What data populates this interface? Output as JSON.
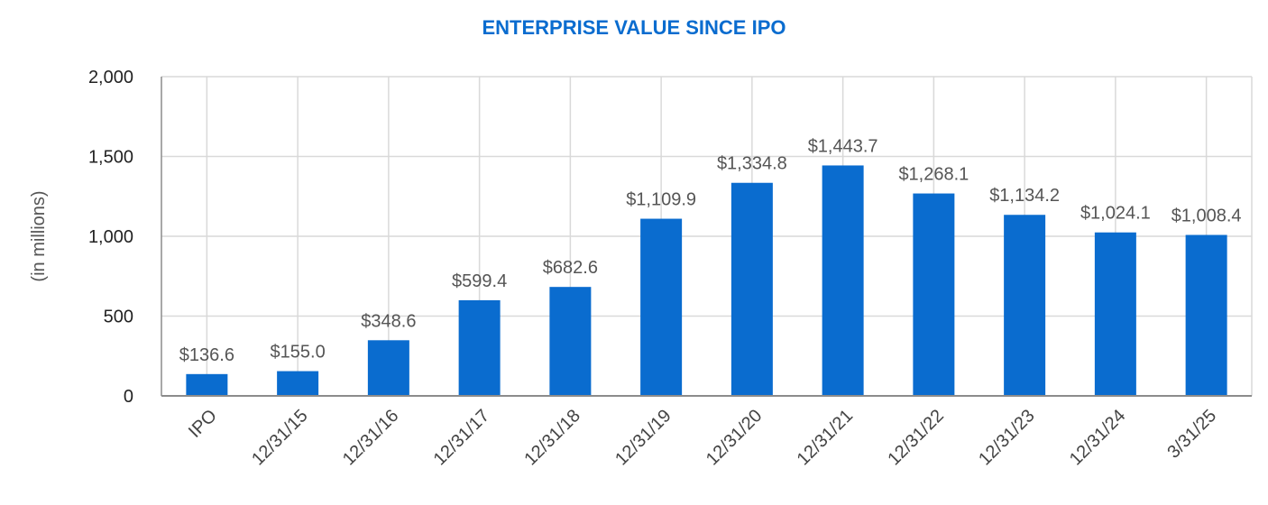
{
  "chart_data": {
    "type": "bar",
    "title": "ENTERPRISE VALUE SINCE IPO",
    "xlabel": "",
    "ylabel": "(in millions)",
    "categories": [
      "IPO",
      "12/31/15",
      "12/31/16",
      "12/31/17",
      "12/31/18",
      "12/31/19",
      "12/31/20",
      "12/31/21",
      "12/31/22",
      "12/31/23",
      "12/31/24",
      "3/31/25"
    ],
    "values": [
      136.6,
      155.0,
      348.6,
      599.4,
      682.6,
      1109.9,
      1334.8,
      1443.7,
      1268.1,
      1134.2,
      1024.1,
      1008.4
    ],
    "data_labels": [
      "$136.6",
      "$155.0",
      "$348.6",
      "$599.4",
      "$682.6",
      "$1,109.9",
      "$1,334.8",
      "$1,443.7",
      "$1,268.1",
      "$1,134.2",
      "$1,024.1",
      "$1,008.4"
    ],
    "ylim": [
      0,
      2000
    ],
    "yticks": [
      0,
      500,
      1000,
      1500,
      2000
    ],
    "ytick_labels": [
      "0",
      "500",
      "1,000",
      "1,500",
      "2,000"
    ],
    "grid": true,
    "colors": {
      "bar": "#0a6ccf",
      "title": "#0a6ccf",
      "grid": "#d9d9d9",
      "axis": "#8c8c8c"
    }
  }
}
